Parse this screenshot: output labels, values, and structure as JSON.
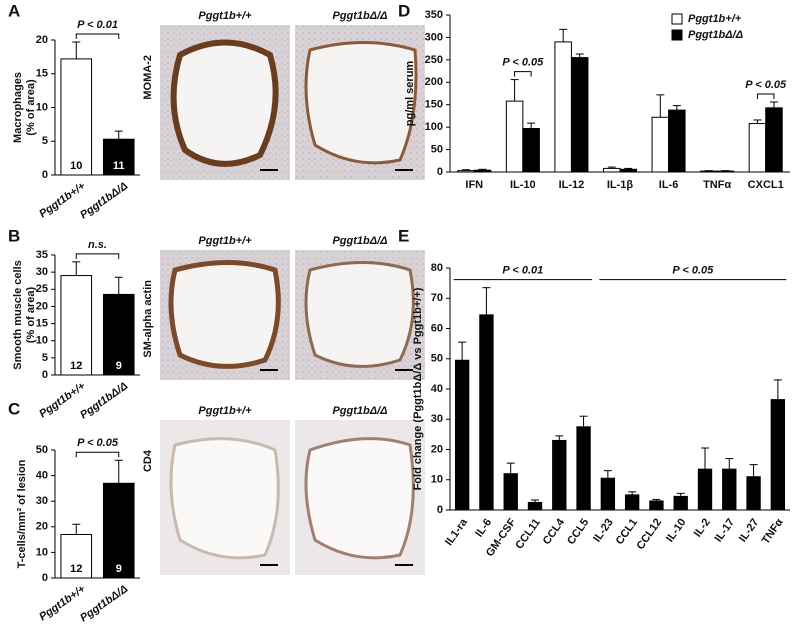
{
  "chart_data": [
    {
      "type": "bar",
      "label": "A",
      "ylabel": [
        "Macrophages",
        "(% of area)"
      ],
      "categories": [
        "Pggt1b+/+",
        "Pggt1bΔ/Δ"
      ],
      "values": [
        17.2,
        5.3
      ],
      "errors": [
        2.5,
        1.2
      ],
      "colors": [
        "#ffffff",
        "#000000"
      ],
      "n_labels": [
        "10",
        "11"
      ],
      "ylim": [
        0,
        20
      ],
      "yticks": [
        0,
        5,
        10,
        15,
        20
      ],
      "annotations": [
        {
          "text": "P < 0.01",
          "span": [
            "Pggt1b+/+",
            "Pggt1bΔ/Δ"
          ]
        }
      ]
    },
    {
      "type": "bar",
      "label": "B",
      "ylabel": [
        "Smooth muscle cells",
        "(% of area)"
      ],
      "categories": [
        "Pggt1b+/+",
        "Pggt1bΔ/Δ"
      ],
      "values": [
        29,
        23.5
      ],
      "errors": [
        4,
        5
      ],
      "colors": [
        "#ffffff",
        "#000000"
      ],
      "n_labels": [
        "12",
        "9"
      ],
      "ylim": [
        0,
        35
      ],
      "yticks": [
        0,
        5,
        10,
        15,
        20,
        25,
        30,
        35
      ],
      "annotations": [
        {
          "text": "n.s.",
          "span": [
            "Pggt1b+/+",
            "Pggt1bΔ/Δ"
          ]
        }
      ]
    },
    {
      "type": "bar",
      "label": "C",
      "ylabel": [
        "T-cells/mm² of lesion"
      ],
      "categories": [
        "Pggt1b+/+",
        "Pggt1bΔ/Δ"
      ],
      "values": [
        17,
        37
      ],
      "errors": [
        4,
        9
      ],
      "colors": [
        "#ffffff",
        "#000000"
      ],
      "n_labels": [
        "12",
        "9"
      ],
      "ylim": [
        0,
        50
      ],
      "yticks": [
        0,
        10,
        20,
        30,
        40,
        50
      ],
      "annotations": [
        {
          "text": "P < 0.05",
          "span": [
            "Pggt1b+/+",
            "Pggt1bΔ/Δ"
          ]
        }
      ]
    },
    {
      "type": "bar",
      "label": "D",
      "ylabel": [
        "pg/ml serum"
      ],
      "categories": [
        "IFN",
        "IL-10",
        "IL-12",
        "IL-1β",
        "IL-6",
        "TNFα",
        "CXCL1"
      ],
      "series": [
        {
          "name": "Pggt1b+/+",
          "color": "#ffffff",
          "values": [
            3,
            158,
            290,
            8,
            122,
            2,
            108
          ],
          "errors": [
            2,
            48,
            28,
            3,
            50,
            1,
            8
          ]
        },
        {
          "name": "Pggt1bΔ/Δ",
          "color": "#000000",
          "values": [
            4,
            97,
            255,
            6,
            138,
            2,
            143
          ],
          "errors": [
            2,
            12,
            8,
            2,
            10,
            1,
            13
          ]
        }
      ],
      "legend": "upper right",
      "ylim": [
        0,
        350
      ],
      "yticks": [
        0,
        50,
        100,
        150,
        200,
        250,
        300,
        350
      ],
      "annotations": [
        {
          "text": "P < 0.05",
          "span": [
            "IL-10",
            "IL-10"
          ]
        },
        {
          "text": "P < 0.05",
          "span": [
            "CXCL1",
            "CXCL1"
          ]
        }
      ]
    },
    {
      "type": "bar",
      "label": "E",
      "ylabel": [
        "Fold change (Pggt1bΔ/Δ vs Pggt1b+/+)"
      ],
      "categories": [
        "IL1-ra",
        "IL-6",
        "GM-CSF",
        "CCL11",
        "CCL4",
        "CCL5",
        "IL-23",
        "CCL1",
        "CCL12",
        "IL-10",
        "IL-2",
        "IL-17",
        "IL-27",
        "TNFα"
      ],
      "values": [
        49.5,
        64.5,
        12,
        2.5,
        23,
        27.5,
        10.5,
        5,
        3,
        4.5,
        13.5,
        13.5,
        11,
        36.5
      ],
      "errors": [
        6,
        9,
        3.5,
        0.8,
        1.5,
        3.5,
        2.5,
        1,
        0.5,
        1,
        7,
        3.5,
        4,
        6.5
      ],
      "color": "#000000",
      "ylim": [
        0,
        80
      ],
      "yticks": [
        0,
        10,
        20,
        30,
        40,
        50,
        60,
        70,
        80
      ],
      "annotations": [
        {
          "text": "P < 0.01",
          "span": [
            "IL1-ra",
            "CCL5"
          ]
        },
        {
          "text": "P < 0.05",
          "span": [
            "IL-23",
            "TNFα"
          ]
        }
      ]
    }
  ],
  "micrographs": [
    {
      "stain": "MOMA-2",
      "genotypes": [
        "Pggt1b+/+",
        "Pggt1bΔ/Δ"
      ]
    },
    {
      "stain": "SM-alpha actin",
      "genotypes": [
        "Pggt1b+/+",
        "Pggt1bΔ/Δ"
      ]
    },
    {
      "stain": "CD4",
      "genotypes": [
        "Pggt1b+/+",
        "Pggt1bΔ/Δ"
      ]
    }
  ]
}
